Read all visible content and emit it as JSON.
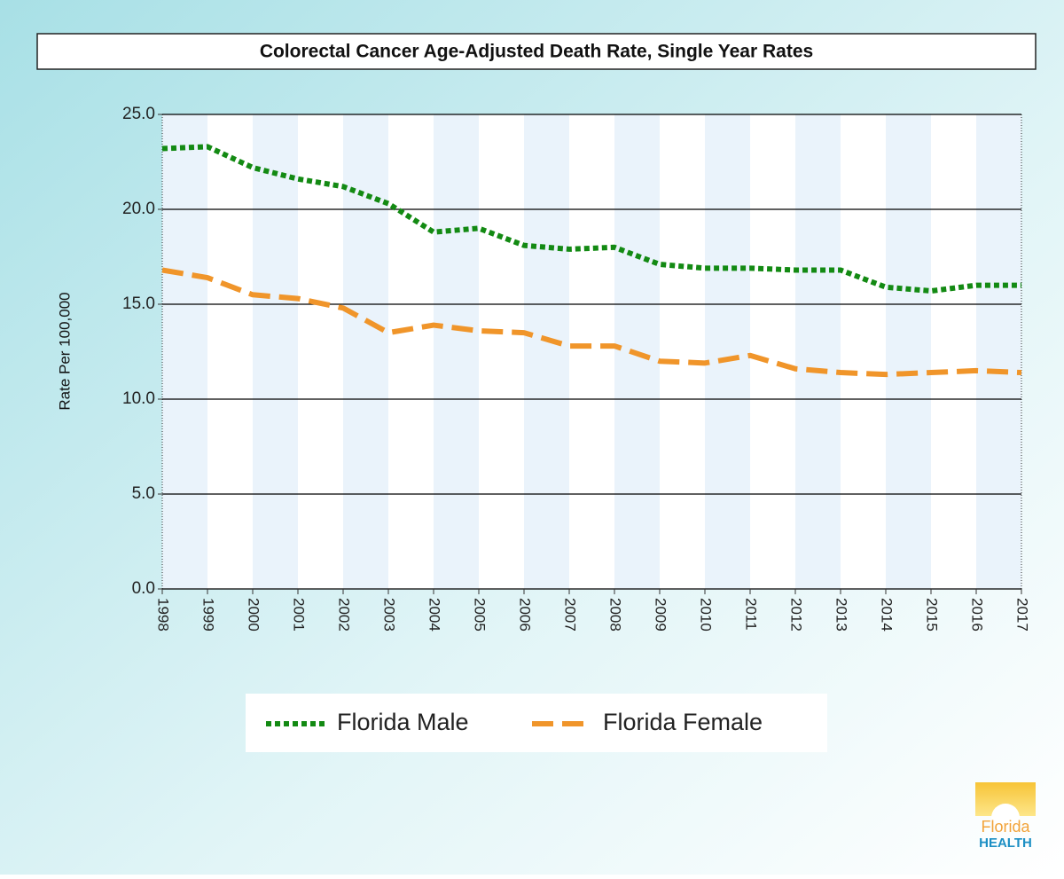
{
  "chart_data": {
    "type": "line",
    "title": "Colorectal Cancer Age-Adjusted Death Rate, Single Year Rates",
    "y_label": "Rate Per 100,000",
    "x": [
      1998,
      1999,
      2000,
      2001,
      2002,
      2003,
      2004,
      2005,
      2006,
      2007,
      2008,
      2009,
      2010,
      2011,
      2012,
      2013,
      2014,
      2015,
      2016,
      2017
    ],
    "xlim": [
      1998,
      2017
    ],
    "xticks": [
      1998,
      1999,
      2000,
      2001,
      2002,
      2003,
      2004,
      2005,
      2006,
      2007,
      2008,
      2009,
      2010,
      2011,
      2012,
      2013,
      2014,
      2015,
      2016,
      2017
    ],
    "ylim": [
      0,
      25
    ],
    "yticks": [
      {
        "value": 0,
        "label": "0.0"
      },
      {
        "value": 5,
        "label": "5.0"
      },
      {
        "value": 10,
        "label": "10.0"
      },
      {
        "value": 15,
        "label": "15.0"
      },
      {
        "value": 20,
        "label": "20.0"
      },
      {
        "value": 25,
        "label": "25.0"
      }
    ],
    "grid": true,
    "legend": "bottom",
    "series": [
      {
        "name": "Florida Male",
        "color": "#138a13",
        "style": "dotted",
        "values": [
          23.2,
          23.3,
          22.2,
          21.6,
          21.2,
          20.3,
          18.8,
          19.0,
          18.1,
          17.9,
          18.0,
          17.1,
          16.9,
          16.9,
          16.8,
          16.8,
          15.9,
          15.7,
          16.0,
          16.0
        ]
      },
      {
        "name": "Florida Female",
        "color": "#f0952a",
        "style": "dashed",
        "values": [
          16.8,
          16.4,
          15.5,
          15.3,
          14.8,
          13.5,
          13.9,
          13.6,
          13.5,
          12.8,
          12.8,
          12.0,
          11.9,
          12.3,
          11.6,
          11.4,
          11.3,
          11.4,
          11.5,
          11.4
        ]
      }
    ]
  },
  "logo": {
    "line1": "Florida",
    "line2": "HEALTH"
  }
}
